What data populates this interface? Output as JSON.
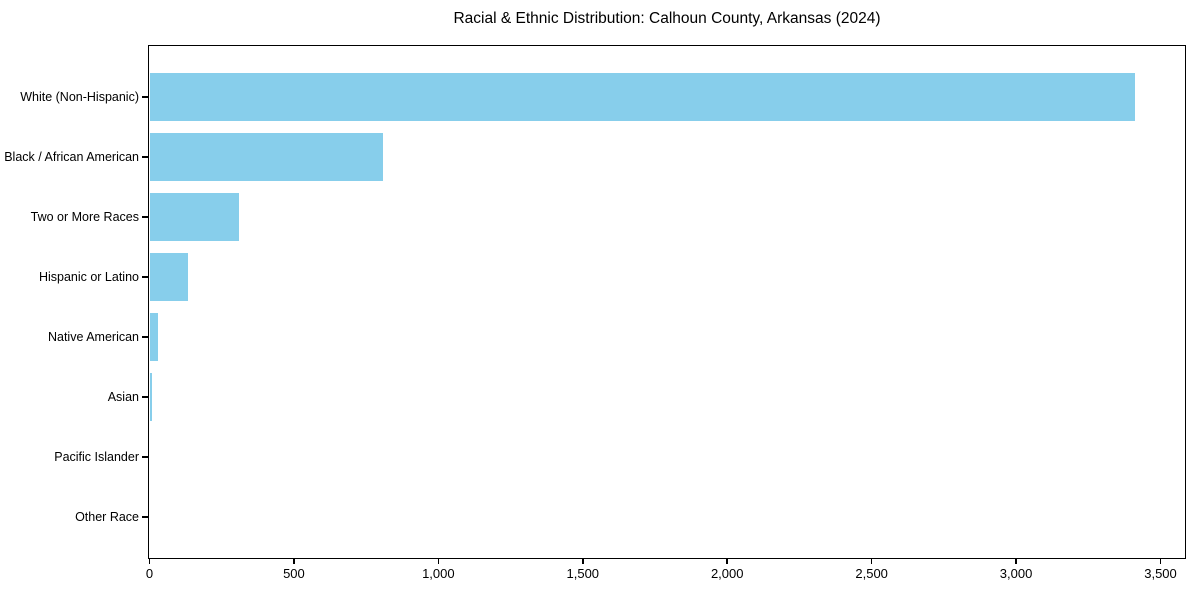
{
  "chart_data": {
    "type": "bar",
    "orientation": "horizontal",
    "title": "Racial & Ethnic Distribution: Calhoun County, Arkansas (2024)",
    "categories": [
      "White (Non-Hispanic)",
      "Black / African American",
      "Two or More Races",
      "Hispanic or Latino",
      "Native American",
      "Asian",
      "Pacific Islander",
      "Other Race"
    ],
    "values": [
      3410,
      810,
      310,
      135,
      30,
      10,
      0,
      0
    ],
    "x_ticks": [
      0,
      500,
      1000,
      1500,
      2000,
      2500,
      3000,
      3500
    ],
    "x_tick_labels": [
      "0",
      "500",
      "1,000",
      "1,500",
      "2,000",
      "2,500",
      "3,000",
      "3,500"
    ],
    "xlim": [
      0,
      3583
    ],
    "xlabel": "",
    "ylabel": "",
    "bar_color": "#87CEEB",
    "axis_color": "#000000",
    "text_color": "#000000",
    "background_color": "#ffffff",
    "grid": false,
    "legend": null
  }
}
